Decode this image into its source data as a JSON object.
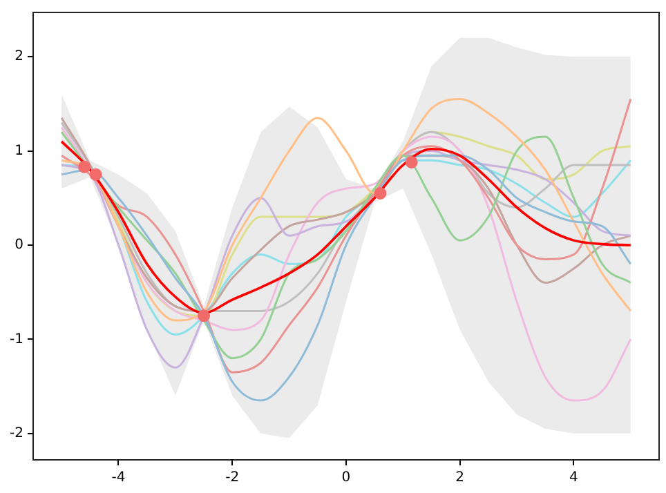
{
  "chart_data": {
    "type": "line",
    "x": [
      -5,
      -4.5,
      -4,
      -3.5,
      -3,
      -2.5,
      -2,
      -1.5,
      -1,
      -0.5,
      0,
      0.5,
      1,
      1.5,
      2,
      2.5,
      3,
      3.5,
      4,
      4.5,
      5
    ],
    "xlim": [
      -5.5,
      5.5
    ],
    "ylim": [
      -2.28,
      2.47
    ],
    "xticks": [
      -4,
      -2,
      0,
      2,
      4
    ],
    "yticks": [
      -2,
      -1,
      0,
      1,
      2
    ],
    "grid": false,
    "legend": false,
    "marker": "none",
    "series": [
      {
        "color": "#8fbbd9",
        "values": [
          0.75,
          0.8,
          0.5,
          0.1,
          -0.35,
          -0.75,
          -1.45,
          -1.65,
          -1.4,
          -0.85,
          0.0,
          0.5,
          0.9,
          0.95,
          0.95,
          0.8,
          0.5,
          0.35,
          0.25,
          0.2,
          -0.2
        ]
      },
      {
        "color": "#ffbf86",
        "values": [
          0.9,
          0.8,
          0.2,
          -0.5,
          -0.8,
          -0.7,
          0.0,
          0.5,
          1.0,
          1.35,
          1.0,
          0.55,
          1.0,
          1.45,
          1.55,
          1.4,
          1.15,
          0.8,
          0.25,
          -0.3,
          -0.7
        ]
      },
      {
        "color": "#94d094",
        "values": [
          1.2,
          0.8,
          0.4,
          0.05,
          -0.3,
          -0.8,
          -1.2,
          -1.0,
          -0.3,
          -0.15,
          0.15,
          0.6,
          0.95,
          0.5,
          0.05,
          0.3,
          1.0,
          1.15,
          0.5,
          -0.2,
          -0.4
        ]
      },
      {
        "color": "#ea9393",
        "values": [
          0.95,
          0.75,
          0.42,
          0.3,
          -0.1,
          -0.7,
          -1.35,
          -1.25,
          -0.85,
          -0.45,
          0.1,
          0.55,
          0.95,
          1.05,
          0.9,
          0.5,
          0.0,
          -0.15,
          -0.1,
          0.6,
          1.55
        ]
      },
      {
        "color": "#c9b3de",
        "values": [
          0.85,
          0.75,
          0.0,
          -0.9,
          -1.3,
          -0.75,
          0.1,
          0.5,
          0.1,
          0.2,
          0.25,
          0.5,
          0.95,
          1.0,
          0.9,
          0.85,
          0.8,
          0.7,
          0.45,
          0.15,
          0.1
        ]
      },
      {
        "color": "#c5a39e",
        "values": [
          1.35,
          0.85,
          0.2,
          -0.35,
          -0.65,
          -0.7,
          -0.35,
          -0.05,
          0.2,
          0.27,
          0.35,
          0.55,
          0.95,
          0.95,
          0.9,
          0.6,
          0.0,
          -0.4,
          -0.25,
          0.0,
          0.1
        ]
      },
      {
        "color": "#f1bbe1",
        "values": [
          1.25,
          0.8,
          0.2,
          -0.4,
          -0.7,
          -0.8,
          -0.9,
          -0.8,
          -0.1,
          0.45,
          0.6,
          0.65,
          1.0,
          1.15,
          1.0,
          0.4,
          -0.6,
          -1.4,
          -1.65,
          -1.55,
          -1.0
        ]
      },
      {
        "color": "#bfbfbf",
        "values": [
          1.3,
          0.85,
          0.3,
          -0.3,
          -0.65,
          -0.7,
          -0.7,
          -0.7,
          -0.6,
          -0.3,
          0.2,
          0.55,
          1.0,
          1.2,
          1.0,
          0.55,
          0.4,
          0.6,
          0.85,
          0.85,
          0.85
        ]
      },
      {
        "color": "#dedf8a",
        "values": [
          1.2,
          0.8,
          0.25,
          -0.4,
          -0.7,
          -0.75,
          -0.1,
          0.3,
          0.3,
          0.3,
          0.35,
          0.6,
          1.0,
          1.2,
          1.15,
          1.05,
          0.95,
          0.7,
          0.75,
          1.0,
          1.05
        ]
      },
      {
        "color": "#8be0ea",
        "values": [
          0.85,
          0.8,
          0.2,
          -0.6,
          -0.95,
          -0.75,
          -0.3,
          -0.1,
          -0.2,
          -0.15,
          0.3,
          0.55,
          0.9,
          0.9,
          0.85,
          0.8,
          0.65,
          0.45,
          0.3,
          0.55,
          0.9
        ]
      },
      {
        "color": "#ff0000",
        "values": [
          1.1,
          0.8,
          0.35,
          -0.2,
          -0.55,
          -0.72,
          -0.58,
          -0.45,
          -0.3,
          -0.1,
          0.2,
          0.5,
          0.85,
          1.02,
          0.95,
          0.7,
          0.4,
          0.18,
          0.05,
          0.01,
          0.0
        ],
        "lower": [
          0.6,
          0.72,
          0.0,
          -0.9,
          -1.6,
          -0.8,
          -1.6,
          -2.0,
          -2.05,
          -1.7,
          -0.6,
          0.45,
          0.6,
          -0.1,
          -0.9,
          -1.45,
          -1.8,
          -1.95,
          -2.0,
          -2.0,
          -2.0
        ],
        "upper": [
          1.6,
          0.9,
          0.75,
          0.55,
          0.15,
          -0.65,
          0.4,
          1.2,
          1.47,
          1.25,
          0.7,
          0.6,
          1.1,
          1.9,
          2.2,
          2.2,
          2.1,
          2.02,
          2.0,
          2.0,
          2.0
        ]
      },
      {
        "type": "scatter",
        "marker": "circle",
        "color": "#f26b6b",
        "x": [
          -4.6,
          -4.4,
          -2.5,
          0.6,
          1.15
        ],
        "values": [
          0.83,
          0.75,
          -0.75,
          0.55,
          0.88
        ]
      }
    ]
  }
}
